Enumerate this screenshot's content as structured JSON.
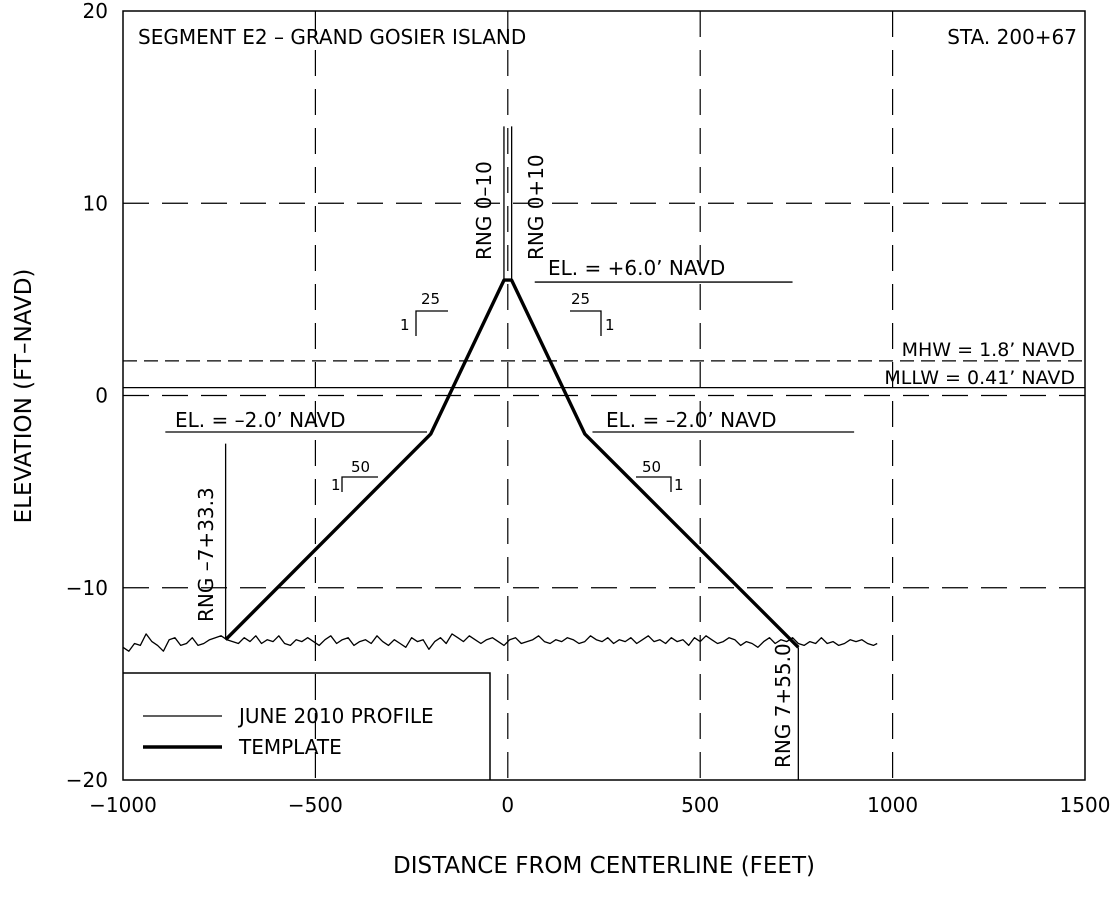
{
  "chart_data": {
    "type": "line",
    "title": "SEGMENT E2 – GRAND GOSIER ISLAND",
    "station": "STA. 200+67",
    "xlabel": "DISTANCE FROM CENTERLINE (FEET)",
    "ylabel": "ELEVATION (FT–NAVD)",
    "xlim": [
      -1000,
      1500
    ],
    "ylim": [
      -20,
      20
    ],
    "xticks": [
      -1000,
      -500,
      0,
      500,
      1000,
      1500
    ],
    "yticks": [
      -20,
      -10,
      0,
      10,
      20
    ],
    "grid": "dashed",
    "legend_position": "bottom-left",
    "series": [
      {
        "name": "JUNE 2010 PROFILE",
        "style": "thin",
        "x": [
          -1000,
          -985,
          -970,
          -955,
          -940,
          -925,
          -910,
          -895,
          -880,
          -865,
          -850,
          -835,
          -820,
          -805,
          -790,
          -775,
          -760,
          -745,
          -730,
          -715,
          -700,
          -685,
          -670,
          -655,
          -640,
          -625,
          -610,
          -595,
          -580,
          -565,
          -550,
          -535,
          -520,
          -505,
          -490,
          -475,
          -460,
          -445,
          -430,
          -415,
          -400,
          -385,
          -370,
          -355,
          -340,
          -325,
          -310,
          -295,
          -280,
          -265,
          -250,
          -235,
          -220,
          -205,
          -190,
          -175,
          -160,
          -145,
          -130,
          -115,
          -100,
          -85,
          -70,
          -55,
          -40,
          -25,
          -10,
          5,
          20,
          35,
          50,
          65,
          80,
          95,
          110,
          125,
          140,
          155,
          170,
          185,
          200,
          215,
          230,
          245,
          260,
          275,
          290,
          305,
          320,
          335,
          350,
          365,
          380,
          395,
          410,
          425,
          440,
          455,
          470,
          485,
          500,
          515,
          530,
          545,
          560,
          575,
          590,
          605,
          620,
          635,
          650,
          665,
          680,
          695,
          710,
          725,
          740,
          755,
          770,
          785,
          800,
          815,
          830,
          845,
          860,
          875,
          890,
          905,
          920,
          935,
          950,
          960
        ],
        "y": [
          -13.1,
          -13.3,
          -12.9,
          -13.0,
          -12.4,
          -12.8,
          -13.0,
          -13.3,
          -12.7,
          -12.6,
          -13.0,
          -12.9,
          -12.6,
          -13.0,
          -12.9,
          -12.7,
          -12.6,
          -12.5,
          -12.7,
          -12.8,
          -12.9,
          -12.6,
          -12.8,
          -12.5,
          -12.9,
          -12.7,
          -12.8,
          -12.5,
          -12.9,
          -13.0,
          -12.7,
          -12.8,
          -12.6,
          -12.8,
          -13.0,
          -12.7,
          -12.5,
          -12.9,
          -12.7,
          -12.6,
          -13.0,
          -12.8,
          -12.7,
          -12.9,
          -12.5,
          -12.8,
          -13.0,
          -12.7,
          -12.9,
          -13.1,
          -12.6,
          -12.8,
          -12.7,
          -13.2,
          -12.8,
          -12.6,
          -12.9,
          -12.4,
          -12.6,
          -12.8,
          -12.5,
          -12.7,
          -12.9,
          -12.7,
          -12.6,
          -12.8,
          -13.0,
          -12.7,
          -12.6,
          -12.9,
          -12.8,
          -12.7,
          -12.5,
          -12.8,
          -12.9,
          -12.7,
          -12.8,
          -12.6,
          -12.7,
          -12.9,
          -12.8,
          -12.5,
          -12.7,
          -12.8,
          -12.6,
          -12.9,
          -12.7,
          -12.8,
          -12.6,
          -12.9,
          -12.7,
          -12.5,
          -12.8,
          -12.7,
          -12.9,
          -12.6,
          -12.8,
          -12.7,
          -13.0,
          -12.6,
          -12.8,
          -12.5,
          -12.7,
          -12.9,
          -12.8,
          -12.6,
          -12.7,
          -13.0,
          -12.8,
          -12.9,
          -13.1,
          -12.8,
          -12.6,
          -12.9,
          -12.7,
          -12.8,
          -12.6,
          -12.9,
          -13.0,
          -12.8,
          -12.9,
          -12.6,
          -12.9,
          -12.8,
          -13.0,
          -12.9,
          -12.7,
          -12.8,
          -12.7,
          -12.9,
          -13.0,
          -12.9
        ]
      },
      {
        "name": "TEMPLATE",
        "style": "thick",
        "x": [
          -733.3,
          -200,
          -10,
          10,
          200,
          755
        ],
        "y": [
          -12.7,
          -2.0,
          6.0,
          6.0,
          -2.0,
          -13.1
        ]
      }
    ],
    "reference_lines": [
      {
        "label": "MHW = 1.8’ NAVD",
        "y": 1.8,
        "style": "dashed"
      },
      {
        "label": "MLLW = 0.41’ NAVD",
        "y": 0.41,
        "style": "solid"
      }
    ],
    "range_markers": [
      {
        "label": "RNG –7+33.3",
        "x": -733.3,
        "y_from": -12.7,
        "y_to": -2.5
      },
      {
        "label": "RNG 0–10",
        "x": -10,
        "y_from": 6.0,
        "y_to": 14.0
      },
      {
        "label": "RNG 0+10",
        "x": 10,
        "y_from": 6.0,
        "y_to": 14.0
      },
      {
        "label": "RNG 7+55.0",
        "x": 755,
        "y_from": -13.1,
        "y_to": -20
      }
    ],
    "annotations": [
      {
        "text": "EL. = +6.0’ NAVD",
        "x1": 70,
        "x2": 740,
        "y": 5.9
      },
      {
        "text": "EL. = –2.0’ NAVD",
        "x1": -890,
        "x2": -210,
        "y": -1.9
      },
      {
        "text": "EL. = –2.0’ NAVD",
        "x1": 220,
        "x2": 900,
        "y": -1.9
      }
    ],
    "slope_labels": [
      {
        "run": "25",
        "rise": "1"
      },
      {
        "run": "25",
        "rise": "1"
      },
      {
        "run": "50",
        "rise": "1"
      },
      {
        "run": "50",
        "rise": "1"
      }
    ]
  }
}
